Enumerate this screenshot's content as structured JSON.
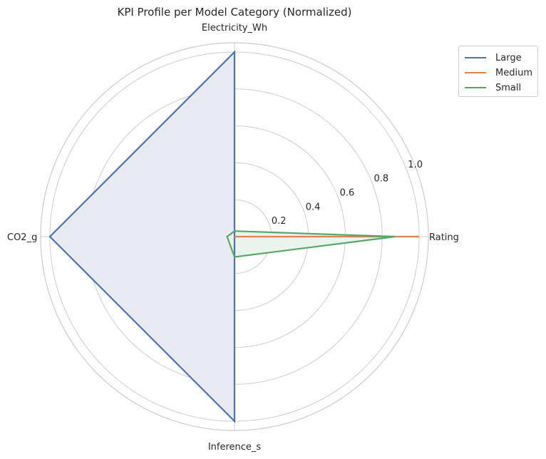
{
  "chart_data": {
    "type": "radar",
    "title": "KPI Profile per Model Category (Normalized)",
    "axes": [
      "Rating",
      "Electricity_Wh",
      "CO2_g",
      "Inference_s"
    ],
    "rlim": [
      0,
      1.05
    ],
    "rticks": [
      0.2,
      0.4,
      0.6,
      0.8,
      1.0
    ],
    "rtick_labels": [
      "0.2",
      "0.4",
      "0.6",
      "0.8",
      "1.0"
    ],
    "grid": true,
    "legend_position": "upper-right-outside",
    "series": [
      {
        "name": "Large",
        "values": [
          0.0,
          1.0,
          1.0,
          1.0
        ],
        "color": "#4c72b0",
        "fill": true,
        "fill_color": "#eaeaf5"
      },
      {
        "name": "Medium",
        "values": [
          1.0,
          0.0,
          0.0,
          0.0
        ],
        "color": "#dd8452",
        "fill": false
      },
      {
        "name": "Small",
        "values": [
          0.87,
          0.03,
          0.04,
          0.11
        ],
        "color": "#55a868",
        "fill": true,
        "fill_color": "#eaf3ec"
      }
    ]
  }
}
